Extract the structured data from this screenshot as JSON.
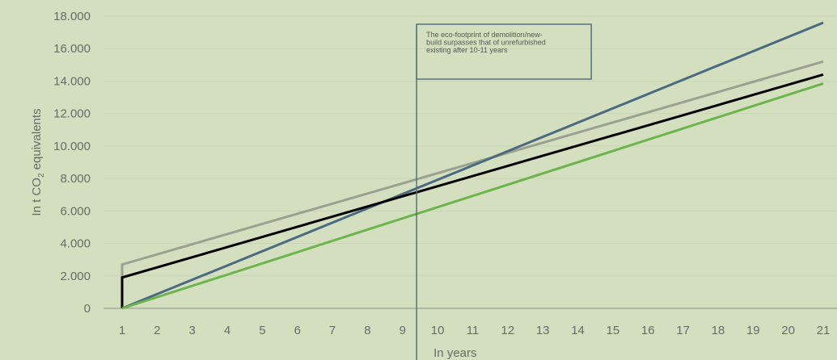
{
  "chart_data": {
    "type": "line",
    "xlabel": "In years",
    "ylabel_prefix": "In t CO",
    "ylabel_sub": "2",
    "ylabel_suffix": " equivalents",
    "xlim": [
      1,
      21
    ],
    "ylim": [
      0,
      18000
    ],
    "x_ticks": [
      1,
      2,
      3,
      4,
      5,
      6,
      7,
      8,
      9,
      10,
      11,
      12,
      13,
      14,
      15,
      16,
      17,
      18,
      19,
      20,
      21
    ],
    "y_ticks": [
      0,
      2000,
      4000,
      6000,
      8000,
      10000,
      12000,
      14000,
      16000,
      18000
    ],
    "y_tick_labels": [
      "0",
      "2.000",
      "4.000",
      "6.000",
      "8.000",
      "10.000",
      "12.000",
      "14.000",
      "16.000",
      "18.000"
    ],
    "grid": "horizontal",
    "series": [
      {
        "color": "#9aa190",
        "x": [
          1,
          21
        ],
        "y": [
          2700,
          15200
        ],
        "start_from_zero": true
      },
      {
        "color": "#4a6a80",
        "x": [
          1,
          21
        ],
        "y": [
          0,
          17600
        ]
      },
      {
        "color": "#000000",
        "x": [
          1,
          21
        ],
        "y": [
          1900,
          14400
        ],
        "start_from_zero": true
      },
      {
        "color": "#6cb44c",
        "x": [
          1,
          21
        ],
        "y": [
          0,
          13850
        ]
      }
    ],
    "annotation": {
      "x": 9.4,
      "lines": [
        "The eco-footprint of demolition/new-",
        "build surpasses that of unrefurbished",
        "existing after 10-11 years"
      ]
    }
  }
}
